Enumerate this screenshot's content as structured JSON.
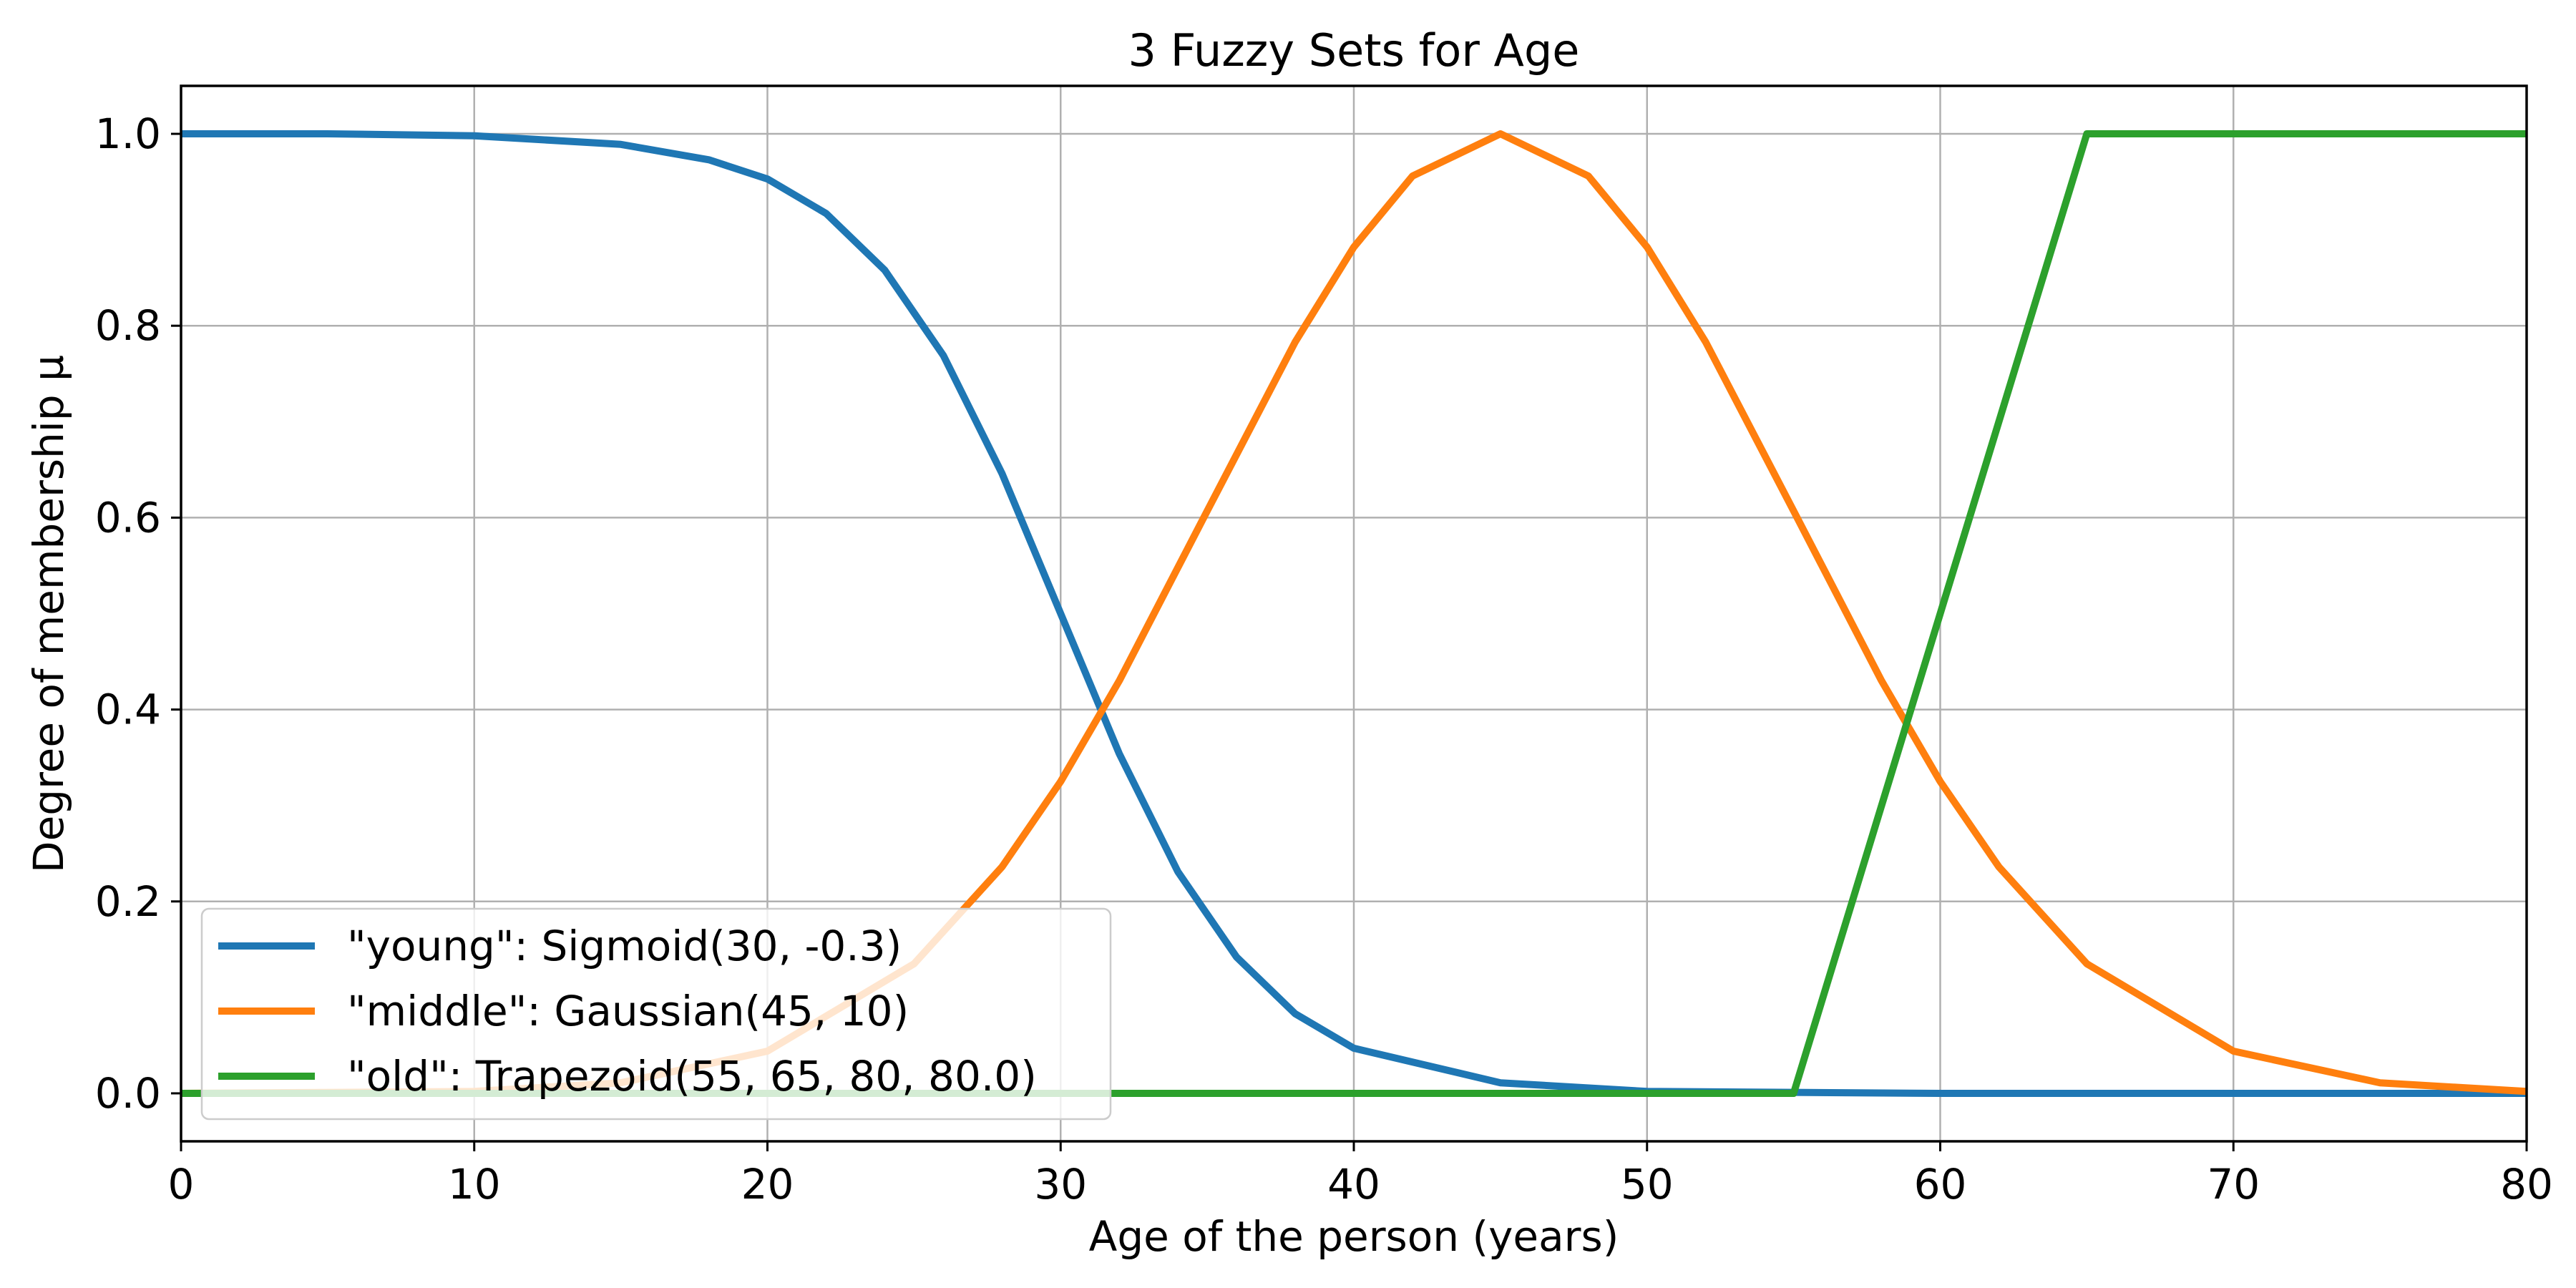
{
  "chart_data": {
    "type": "line",
    "title": "3 Fuzzy Sets for Age",
    "xlabel": "Age of the person (years)",
    "ylabel": "Degree of membership µ",
    "xlim": [
      0,
      80
    ],
    "ylim": [
      -0.05,
      1.05
    ],
    "xticks": [
      "0",
      "10",
      "20",
      "30",
      "40",
      "50",
      "60",
      "70",
      "80"
    ],
    "yticks": [
      "0.0",
      "0.2",
      "0.4",
      "0.6",
      "0.8",
      "1.0"
    ],
    "grid": true,
    "legend_position": "lower-left",
    "series": [
      {
        "name": "\"young\": Sigmoid(30, -0.3)",
        "color": "#1f77b4",
        "x": [
          0,
          5,
          10,
          15,
          18,
          20,
          22,
          24,
          26,
          28,
          30,
          32,
          34,
          36,
          38,
          40,
          45,
          50,
          55,
          60,
          70,
          80
        ],
        "y": [
          1.0,
          1.0,
          0.998,
          0.989,
          0.973,
          0.953,
          0.917,
          0.858,
          0.769,
          0.646,
          0.5,
          0.354,
          0.231,
          0.142,
          0.083,
          0.047,
          0.011,
          0.002,
          0.001,
          0.0,
          0.0,
          0.0
        ]
      },
      {
        "name": "\"middle\": Gaussian(45, 10)",
        "color": "#ff7f0e",
        "x": [
          0,
          10,
          15,
          20,
          25,
          28,
          30,
          32,
          35,
          38,
          40,
          42,
          45,
          48,
          50,
          52,
          55,
          58,
          60,
          62,
          65,
          70,
          75,
          80
        ],
        "y": [
          0.0,
          0.002,
          0.011,
          0.044,
          0.135,
          0.236,
          0.325,
          0.43,
          0.607,
          0.783,
          0.882,
          0.956,
          1.0,
          0.956,
          0.882,
          0.783,
          0.607,
          0.43,
          0.325,
          0.236,
          0.135,
          0.044,
          0.011,
          0.002
        ]
      },
      {
        "name": "\"old\": Trapezoid(55, 65, 80, 80.0)",
        "color": "#2ca02c",
        "x": [
          0,
          55,
          65,
          80
        ],
        "y": [
          0.0,
          0.0,
          1.0,
          1.0
        ]
      }
    ]
  }
}
